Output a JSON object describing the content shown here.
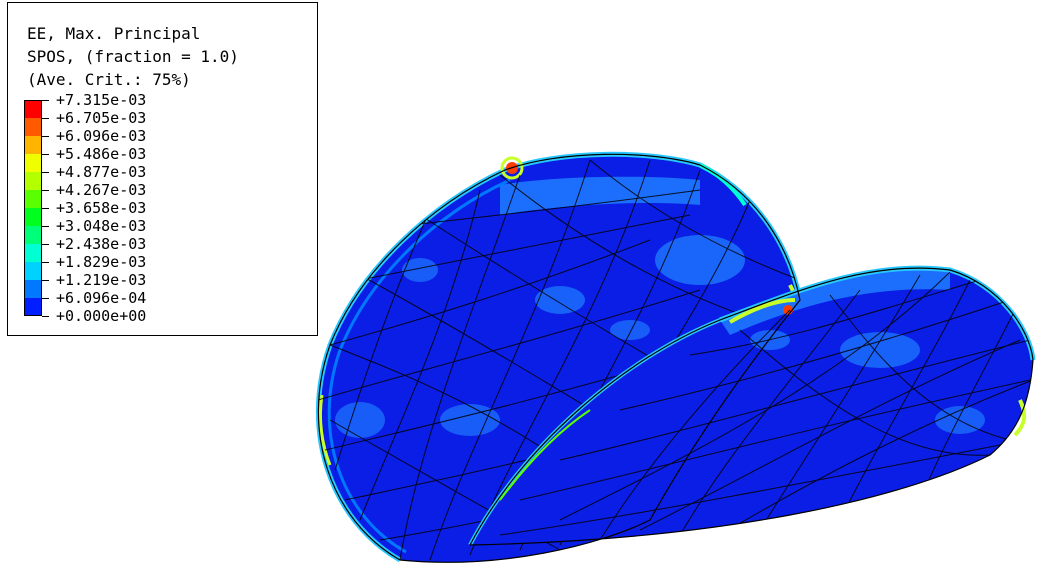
{
  "legend": {
    "title_lines": [
      "EE, Max. Principal",
      "SPOS, (fraction = 1.0)",
      "(Ave. Crit.: 75%)"
    ],
    "entries": [
      {
        "label": "+7.315e-03",
        "color": "#ff0000"
      },
      {
        "label": "+6.705e-03",
        "color": "#ff5a00"
      },
      {
        "label": "+6.096e-03",
        "color": "#ffb400"
      },
      {
        "label": "+5.486e-03",
        "color": "#f0ff00"
      },
      {
        "label": "+4.877e-03",
        "color": "#b4ff00"
      },
      {
        "label": "+4.267e-03",
        "color": "#5aff00"
      },
      {
        "label": "+3.658e-03",
        "color": "#00ff1e"
      },
      {
        "label": "+3.048e-03",
        "color": "#00ff78"
      },
      {
        "label": "+2.438e-03",
        "color": "#00ffd2"
      },
      {
        "label": "+1.829e-03",
        "color": "#00d2ff"
      },
      {
        "label": "+1.219e-03",
        "color": "#0078ff"
      },
      {
        "label": "+6.096e-04",
        "color": "#001eff"
      },
      {
        "label": "+0.000e+00",
        "color": null
      }
    ]
  },
  "colors": {
    "base_blue": "#0a1ee6",
    "light_blue": "#1e78ff",
    "cyan": "#28c8ff",
    "green_yellow": "#c8ff28",
    "hot": "#ff3c00",
    "mesh_line": "#000000"
  }
}
